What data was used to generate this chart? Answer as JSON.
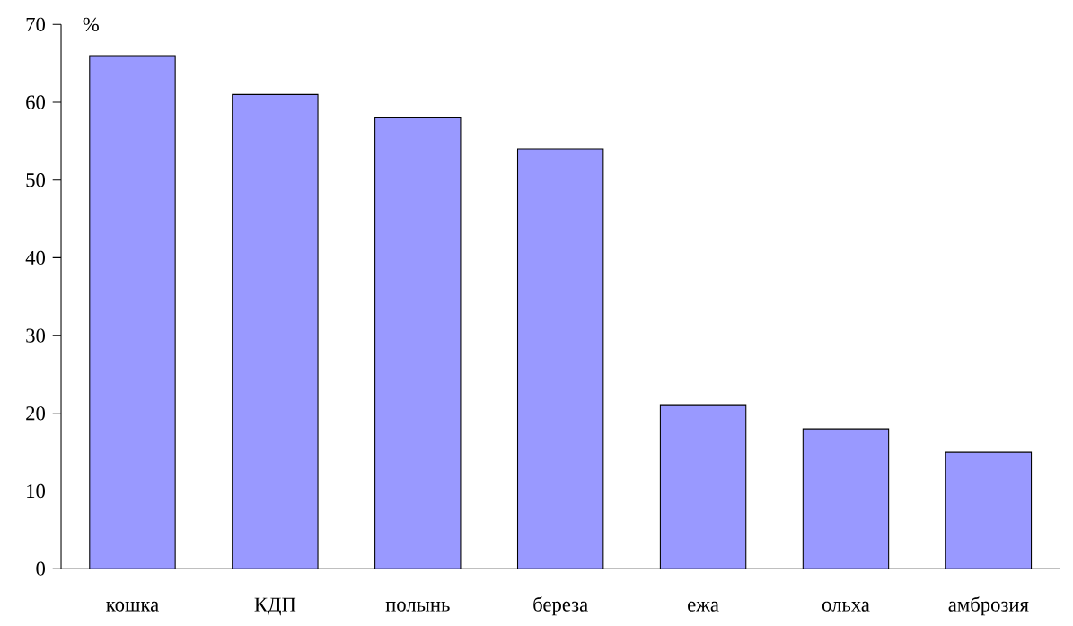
{
  "chart_data": {
    "type": "bar",
    "ylabel": "%",
    "categories": [
      "кошка",
      "КДП",
      "полынь",
      "береза",
      "ежа",
      "ольха",
      "амброзия"
    ],
    "values": [
      66,
      61,
      58,
      54,
      21,
      18,
      15
    ],
    "color": "#9999ff",
    "ylim": [
      0,
      70
    ],
    "yticks": [
      0,
      10,
      20,
      30,
      40,
      50,
      60,
      70
    ]
  }
}
